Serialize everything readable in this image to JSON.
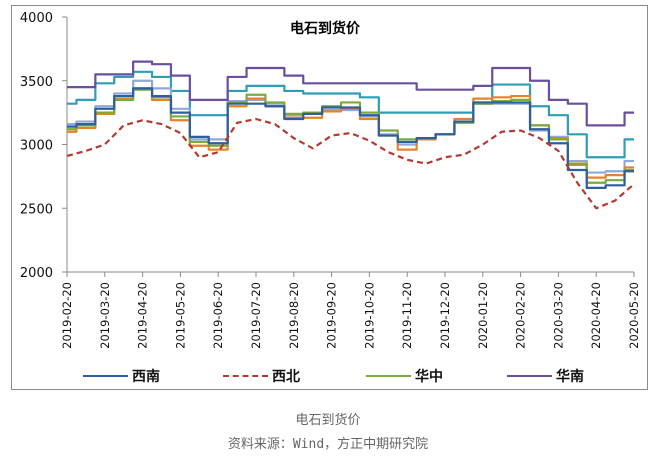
{
  "chart_data": {
    "type": "line",
    "title": "电石到货价",
    "xlabel": "",
    "ylabel": "",
    "ylim": [
      2000,
      4000
    ],
    "yticks": [
      2000,
      2500,
      3000,
      3500,
      4000
    ],
    "xticks": [
      "2019-02-20",
      "2019-03-20",
      "2019-04-20",
      "2019-05-20",
      "2019-06-20",
      "2019-07-20",
      "2019-08-20",
      "2019-09-20",
      "2019-10-20",
      "2019-11-20",
      "2019-12-20",
      "2020-01-20",
      "2020-02-20",
      "2020-03-20",
      "2020-04-20",
      "2020-05-20"
    ],
    "grid": false,
    "legend_position": "bottom",
    "x": [
      "2019-02-20",
      "2019-03-05",
      "2019-03-20",
      "2019-04-05",
      "2019-04-20",
      "2019-05-05",
      "2019-05-20",
      "2019-06-05",
      "2019-06-20",
      "2019-07-05",
      "2019-07-20",
      "2019-08-05",
      "2019-08-20",
      "2019-09-05",
      "2019-09-20",
      "2019-10-05",
      "2019-10-20",
      "2019-11-05",
      "2019-11-20",
      "2019-12-05",
      "2019-12-20",
      "2020-01-05",
      "2020-01-20",
      "2020-02-05",
      "2020-02-20",
      "2020-03-05",
      "2020-03-20",
      "2020-04-05",
      "2020-04-20",
      "2020-05-05",
      "2020-05-20"
    ],
    "series": [
      {
        "name": "西南",
        "color": "#2F5E9E",
        "dash": false,
        "in_legend": true,
        "values": [
          3140,
          3160,
          3280,
          3380,
          3440,
          3380,
          3250,
          3060,
          3010,
          3320,
          3320,
          3300,
          3200,
          3240,
          3290,
          3290,
          3230,
          3070,
          3020,
          3050,
          3080,
          3180,
          3330,
          3330,
          3330,
          3120,
          3010,
          2800,
          2660,
          2680,
          2790
        ]
      },
      {
        "name": "西北",
        "color": "#B23A30",
        "dash": true,
        "in_legend": true,
        "values": [
          2910,
          2950,
          3000,
          3150,
          3190,
          3160,
          3090,
          2900,
          2940,
          3170,
          3200,
          3160,
          3050,
          2970,
          3070,
          3090,
          3030,
          2940,
          2880,
          2850,
          2900,
          2920,
          3000,
          3100,
          3110,
          3050,
          2950,
          2700,
          2500,
          2560,
          2690
        ]
      },
      {
        "name": "华中",
        "color": "#7AAB3C",
        "dash": false,
        "in_legend": true,
        "values": [
          3120,
          3150,
          3250,
          3350,
          3430,
          3370,
          3220,
          3020,
          2990,
          3330,
          3390,
          3330,
          3240,
          3250,
          3300,
          3330,
          3250,
          3110,
          3040,
          3050,
          3080,
          3170,
          3320,
          3340,
          3350,
          3150,
          3040,
          2850,
          2700,
          2720,
          2800
        ]
      },
      {
        "name": "华南",
        "color": "#6B4E9E",
        "dash": false,
        "in_legend": true,
        "values": [
          3450,
          3450,
          3550,
          3550,
          3650,
          3630,
          3540,
          3350,
          3350,
          3530,
          3600,
          3600,
          3540,
          3480,
          3480,
          3480,
          3480,
          3480,
          3480,
          3430,
          3430,
          3430,
          3460,
          3600,
          3600,
          3500,
          3350,
          3320,
          3150,
          3150,
          3250
        ]
      },
      {
        "name": "series-teal",
        "color": "#2E9DB6",
        "dash": false,
        "in_legend": false,
        "values": [
          3320,
          3350,
          3480,
          3530,
          3570,
          3530,
          3420,
          3230,
          3230,
          3420,
          3460,
          3460,
          3420,
          3400,
          3400,
          3400,
          3370,
          3250,
          3250,
          3250,
          3250,
          3250,
          3320,
          3470,
          3470,
          3300,
          3230,
          3080,
          2900,
          2900,
          3040
        ]
      },
      {
        "name": "series-orange",
        "color": "#E8812A",
        "dash": false,
        "in_legend": false,
        "values": [
          3100,
          3130,
          3240,
          3360,
          3440,
          3350,
          3190,
          2990,
          2960,
          3300,
          3360,
          3300,
          3210,
          3210,
          3260,
          3280,
          3200,
          3070,
          2960,
          3040,
          3080,
          3200,
          3360,
          3370,
          3380,
          3150,
          3050,
          2840,
          2740,
          2760,
          2820
        ]
      },
      {
        "name": "series-lightblue",
        "color": "#8FAADA",
        "dash": false,
        "in_legend": false,
        "values": [
          3160,
          3180,
          3300,
          3400,
          3500,
          3440,
          3280,
          3040,
          3040,
          3340,
          3350,
          3320,
          3230,
          3240,
          3270,
          3270,
          3220,
          3080,
          3000,
          3040,
          3080,
          3180,
          3330,
          3320,
          3320,
          3110,
          3060,
          2870,
          2780,
          2790,
          2870
        ]
      }
    ]
  },
  "title": "电石到货价",
  "legend": [
    {
      "label": "西南",
      "color": "#2F5E9E",
      "style": "solid"
    },
    {
      "label": "西北",
      "color": "#B23A30",
      "style": "dashed"
    },
    {
      "label": "华中",
      "color": "#7AAB3C",
      "style": "solid"
    },
    {
      "label": "华南",
      "color": "#6B4E9E",
      "style": "solid"
    }
  ],
  "caption": {
    "title": "电石到货价",
    "source": "资料来源：Wind，方正中期研究院"
  }
}
